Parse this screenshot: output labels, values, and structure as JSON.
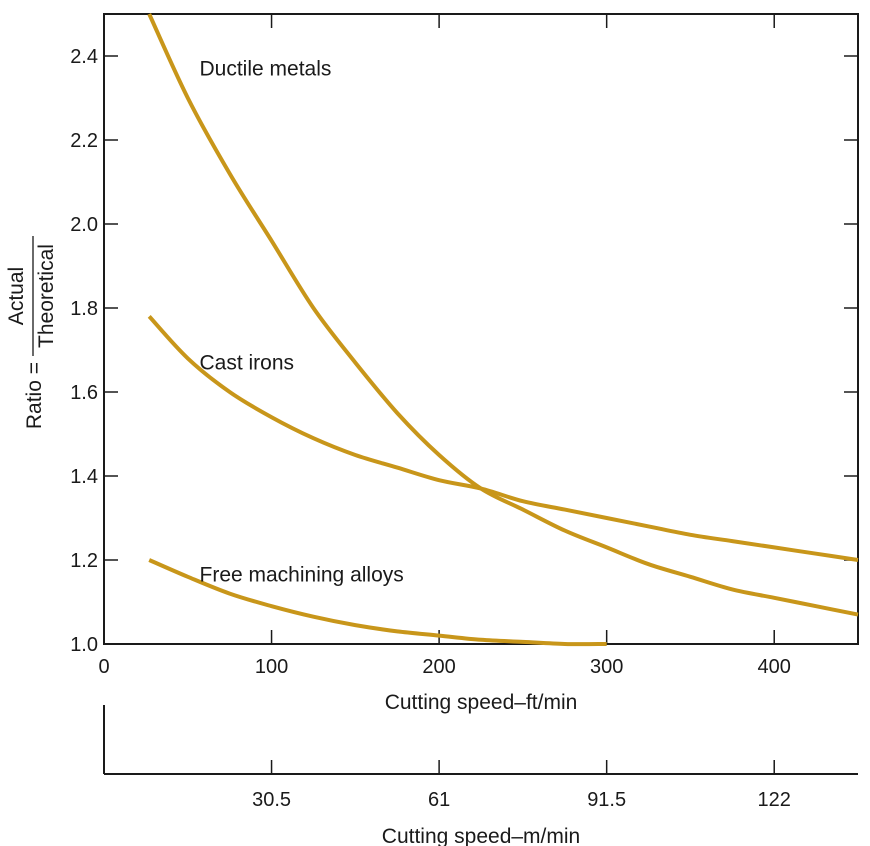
{
  "chart_data": {
    "type": "line",
    "ylabel_prefix": "Ratio =",
    "ylabel_numerator": "Actual",
    "ylabel_denominator": "Theoretical",
    "xlabel": "Cutting speed–ft/min",
    "x2label": "Cutting speed–m/min",
    "xlim": [
      0,
      450
    ],
    "ylim": [
      1.0,
      2.5
    ],
    "xticks": [
      0,
      100,
      200,
      300,
      400
    ],
    "xtick_labels": [
      "0",
      "100",
      "200",
      "300",
      "400"
    ],
    "yticks": [
      1.0,
      1.2,
      1.4,
      1.6,
      1.8,
      2.0,
      2.2,
      2.4
    ],
    "ytick_labels": [
      "1.0",
      "1.2",
      "1.4",
      "1.6",
      "1.8",
      "2.0",
      "2.2",
      "2.4"
    ],
    "x2ticks": [
      100,
      200,
      300,
      400
    ],
    "x2tick_labels": [
      "30.5",
      "61",
      "91.5",
      "122"
    ],
    "grid": false,
    "series": [
      {
        "name": "Ductile metals",
        "x": [
          27,
          50,
          75,
          100,
          125,
          150,
          175,
          200,
          225,
          250,
          275,
          300,
          325,
          350,
          375,
          400,
          425,
          450
        ],
        "y": [
          2.5,
          2.3,
          2.12,
          1.96,
          1.8,
          1.67,
          1.55,
          1.45,
          1.37,
          1.32,
          1.27,
          1.23,
          1.19,
          1.16,
          1.13,
          1.11,
          1.09,
          1.07
        ]
      },
      {
        "name": "Cast irons",
        "x": [
          27,
          50,
          75,
          100,
          125,
          150,
          175,
          200,
          225,
          250,
          275,
          300,
          325,
          350,
          375,
          400,
          425,
          450
        ],
        "y": [
          1.78,
          1.68,
          1.6,
          1.54,
          1.49,
          1.45,
          1.42,
          1.39,
          1.37,
          1.34,
          1.32,
          1.3,
          1.28,
          1.26,
          1.245,
          1.23,
          1.215,
          1.2
        ]
      },
      {
        "name": "Free machining alloys",
        "x": [
          27,
          50,
          75,
          100,
          125,
          150,
          175,
          200,
          225,
          250,
          275,
          300
        ],
        "y": [
          1.2,
          1.16,
          1.12,
          1.09,
          1.065,
          1.045,
          1.03,
          1.02,
          1.01,
          1.005,
          1.0,
          1.0
        ]
      }
    ],
    "line_color": "#C8961A"
  }
}
